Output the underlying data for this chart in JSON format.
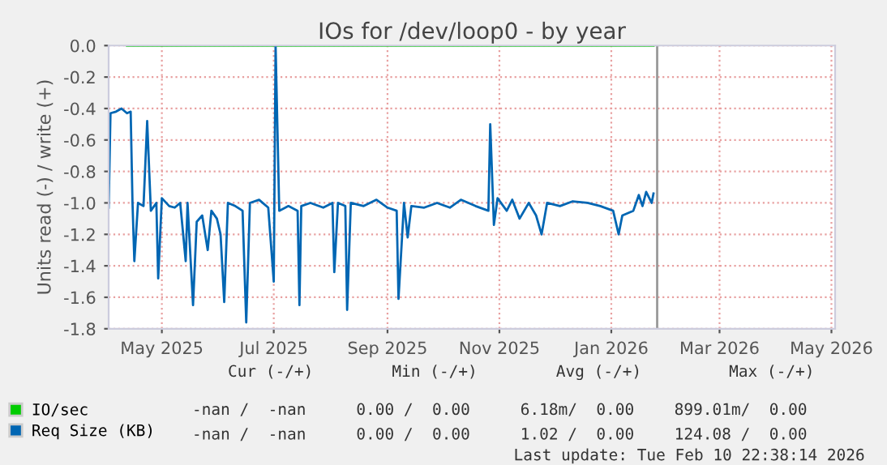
{
  "chart_data": {
    "type": "line",
    "title": "IOs for /dev/loop0 - by year",
    "ylabel": "Units read (-) / write (+)",
    "x": [
      "2025-04-17",
      "2025-04-18",
      "2025-04-21",
      "2025-04-24",
      "2025-04-27",
      "2025-04-29",
      "2025-04-30",
      "2025-05-01",
      "2025-05-03",
      "2025-05-06",
      "2025-05-08",
      "2025-05-10",
      "2025-05-13",
      "2025-05-14",
      "2025-05-16",
      "2025-05-20",
      "2025-05-23",
      "2025-05-26",
      "2025-05-29",
      "2025-05-30",
      "2025-06-02",
      "2025-06-04",
      "2025-06-07",
      "2025-06-10",
      "2025-06-12",
      "2025-06-15",
      "2025-06-17",
      "2025-06-19",
      "2025-06-21",
      "2025-06-25",
      "2025-06-29",
      "2025-07-01",
      "2025-07-03",
      "2025-07-08",
      "2025-07-13",
      "2025-07-16",
      "2025-07-17",
      "2025-07-19",
      "2025-07-24",
      "2025-07-29",
      "2025-07-30",
      "2025-07-31",
      "2025-08-05",
      "2025-08-12",
      "2025-08-17",
      "2025-08-18",
      "2025-08-20",
      "2025-08-24",
      "2025-08-25",
      "2025-08-27",
      "2025-09-03",
      "2025-09-10",
      "2025-09-16",
      "2025-09-21",
      "2025-09-22",
      "2025-09-25",
      "2025-09-27",
      "2025-09-29",
      "2025-10-06",
      "2025-10-13",
      "2025-10-20",
      "2025-10-26",
      "2025-11-03",
      "2025-11-10",
      "2025-11-11",
      "2025-11-13",
      "2025-11-15",
      "2025-11-20",
      "2025-11-23",
      "2025-11-27",
      "2025-12-02",
      "2025-12-06",
      "2025-12-09",
      "2025-12-12",
      "2025-12-19",
      "2025-12-26",
      "2026-01-03",
      "2026-01-10",
      "2026-01-17",
      "2026-01-20",
      "2026-01-22",
      "2026-01-28",
      "2026-01-31",
      "2026-02-02",
      "2026-02-04",
      "2026-02-07",
      "2026-02-08"
    ],
    "series": [
      {
        "name": "IO/sec",
        "color": "#00cc00",
        "x": [
          "2025-04-27",
          "2026-02-08"
        ],
        "values": [
          0.0,
          0.0
        ]
      },
      {
        "name": "Req Size (KB)",
        "color": "#0066b3",
        "values": [
          -1.03,
          -0.43,
          -0.42,
          -0.4,
          -0.43,
          -0.42,
          -1.0,
          -1.37,
          -1.0,
          -1.02,
          -0.48,
          -1.05,
          -1.0,
          -1.48,
          -0.97,
          -1.02,
          -1.03,
          -1.0,
          -1.37,
          -1.0,
          -1.65,
          -1.12,
          -1.08,
          -1.3,
          -1.05,
          -1.1,
          -1.2,
          -1.63,
          -1.0,
          -1.02,
          -1.05,
          -1.76,
          -1.0,
          -0.98,
          -1.03,
          -1.5,
          0.0,
          -1.05,
          -1.02,
          -1.05,
          -1.65,
          -1.02,
          -1.0,
          -1.03,
          -1.0,
          -1.44,
          -1.0,
          -1.02,
          -1.68,
          -1.0,
          -1.02,
          -0.98,
          -1.03,
          -1.05,
          -1.61,
          -1.0,
          -1.22,
          -1.02,
          -1.03,
          -1.0,
          -1.03,
          -0.98,
          -1.02,
          -1.05,
          -0.5,
          -1.14,
          -0.97,
          -1.05,
          -0.98,
          -1.1,
          -1.0,
          -1.08,
          -1.2,
          -1.0,
          -1.02,
          -0.99,
          -1.0,
          -1.02,
          -1.05,
          -1.2,
          -1.08,
          -1.05,
          -0.95,
          -1.02,
          -0.93,
          -1.0,
          -0.94
        ]
      }
    ],
    "xlim": [
      "2025-04-17",
      "2026-05-18"
    ],
    "xticks": [
      {
        "value": "2025-05-16",
        "label": "May 2025"
      },
      {
        "value": "2025-07-16",
        "label": "Jul 2025"
      },
      {
        "value": "2025-09-16",
        "label": "Sep 2025"
      },
      {
        "value": "2025-11-16",
        "label": "Nov 2025"
      },
      {
        "value": "2026-01-16",
        "label": "Jan 2026"
      },
      {
        "value": "2026-03-16",
        "label": "Mar 2026"
      },
      {
        "value": "2026-05-16",
        "label": "May 2026"
      }
    ],
    "ylim": [
      -1.8,
      0.0
    ],
    "yticks": [
      {
        "value": -1.8,
        "label": "-1.8"
      },
      {
        "value": -1.6,
        "label": "-1.6"
      },
      {
        "value": -1.4,
        "label": "-1.4"
      },
      {
        "value": -1.2,
        "label": "-1.2"
      },
      {
        "value": -1.0,
        "label": "-1.0"
      },
      {
        "value": -0.8,
        "label": "-0.8"
      },
      {
        "value": -0.6,
        "label": "-0.6"
      },
      {
        "value": -0.4,
        "label": "-0.4"
      },
      {
        "value": -0.2,
        "label": "-0.2"
      },
      {
        "value": 0.0,
        "label": "0.0"
      }
    ],
    "ref_lines": [
      {
        "axis": "x",
        "value": "2026-02-10",
        "label": null,
        "color": "#999999"
      }
    ],
    "grid": true,
    "legend": "bottom",
    "line_style": "solid",
    "marker": "none",
    "annotations": [
      "Cur (-/+)",
      "Min (-/+)",
      "Avg (-/+)",
      "Max (-/+)",
      "-nan /  -nan",
      "0.00 /  0.00",
      "6.18m/  0.00",
      "899.01m/  0.00",
      "-nan /  -nan",
      "0.00 /  0.00",
      "1.02 /  0.00",
      "124.08 /  0.00",
      "Last update: Tue Feb 10 22:38:14 2026"
    ]
  }
}
